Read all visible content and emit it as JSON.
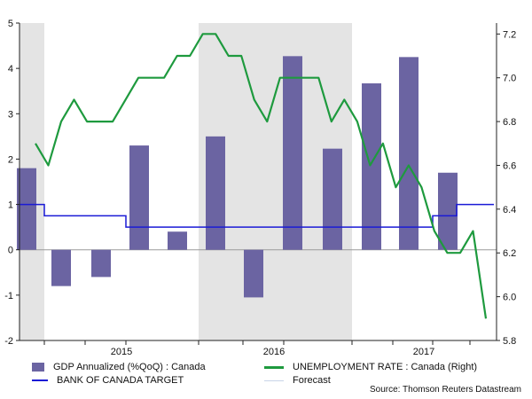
{
  "chart_data": {
    "type": "bar+line",
    "title": "",
    "source": "Source: Thomson Reuters Datastream",
    "x_tick_labels": [
      "2015",
      "2016",
      "2017"
    ],
    "left_axis": {
      "ylim": [
        -2,
        5
      ],
      "ticks": [
        "-2",
        "-1",
        "0",
        "1",
        "2",
        "3",
        "4",
        "5"
      ]
    },
    "right_axis": {
      "ylim": [
        5.8,
        7.25
      ],
      "ticks": [
        "5.8",
        "6.0",
        "6.2",
        "6.4",
        "6.6",
        "6.8",
        "7.0",
        "7.2"
      ]
    },
    "shaded_periods": [
      {
        "from": "2014 Q4",
        "to": "2015 Q1"
      },
      {
        "from": "2015 Q4",
        "to": "2016 Q3"
      }
    ],
    "gdp": {
      "name": "GDP Annualized (%QoQ) : Canada",
      "color": "#6b64a2",
      "periods": [
        "2014 Q4",
        "2015 Q1",
        "2015 Q2",
        "2015 Q3",
        "2015 Q4",
        "2016 Q1",
        "2016 Q2",
        "2016 Q3",
        "2016 Q4",
        "2017 Q1",
        "2017 Q2",
        "2017 Q3"
      ],
      "values": [
        1.8,
        -0.8,
        -0.6,
        2.3,
        0.4,
        2.5,
        -1.05,
        4.27,
        2.23,
        3.67,
        4.25,
        1.7
      ]
    },
    "unemployment": {
      "name": "UNEMPLOYMENT RATE : Canada (Right)",
      "color": "#1e9a3e",
      "values": [
        6.7,
        6.6,
        6.8,
        6.9,
        6.8,
        6.8,
        6.8,
        6.9,
        7.0,
        7.0,
        7.0,
        7.1,
        7.1,
        7.2,
        7.2,
        7.1,
        7.1,
        6.9,
        6.8,
        7.0,
        7.0,
        7.0,
        7.0,
        6.8,
        6.9,
        6.8,
        6.6,
        6.7,
        6.5,
        6.6,
        6.5,
        6.3,
        6.2,
        6.2,
        6.3,
        5.9
      ]
    },
    "boc_target": {
      "name": "BANK OF CANADA TARGET",
      "color": "#1a1ad6",
      "segments": [
        {
          "from": "2014 Q4",
          "to": "2015 Q1",
          "value": 1.0
        },
        {
          "from": "2015 Q1",
          "to": "2015 Q3",
          "value": 0.75
        },
        {
          "from": "2015 Q3",
          "to": "2017 Q3",
          "value": 0.5
        },
        {
          "from": "2017 Q3",
          "to": "2017 Q3b",
          "value": 0.75
        },
        {
          "from": "2017 Q3b",
          "to": "2017 Q4",
          "value": 1.0
        }
      ]
    },
    "forecast": {
      "name": "Forecast",
      "color": "#c8d4e8"
    }
  }
}
